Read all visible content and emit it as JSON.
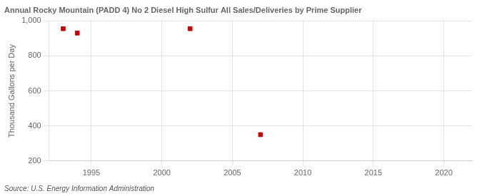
{
  "chart_data": {
    "type": "scatter",
    "title": "Annual Rocky Mountain (PADD 4) No 2 Diesel High Sulfur All Sales/Deliveries by Prime Supplier",
    "ylabel": "Thousand Gallons per Day",
    "annotations": [
      "Source: U.S. Energy Information Administration"
    ],
    "x": [
      1993,
      1994,
      2002,
      2007
    ],
    "values": [
      955,
      930,
      955,
      350
    ],
    "color": "#cc0000",
    "marker": "square",
    "xlim": [
      1992,
      2022
    ],
    "xticks": [
      1995,
      2000,
      2005,
      2010,
      2015,
      2020
    ],
    "ylim": [
      200,
      1000
    ],
    "yticks": [
      200,
      400,
      600,
      800,
      {
        "value": 1000,
        "label": "1,000"
      }
    ],
    "grid": true
  }
}
